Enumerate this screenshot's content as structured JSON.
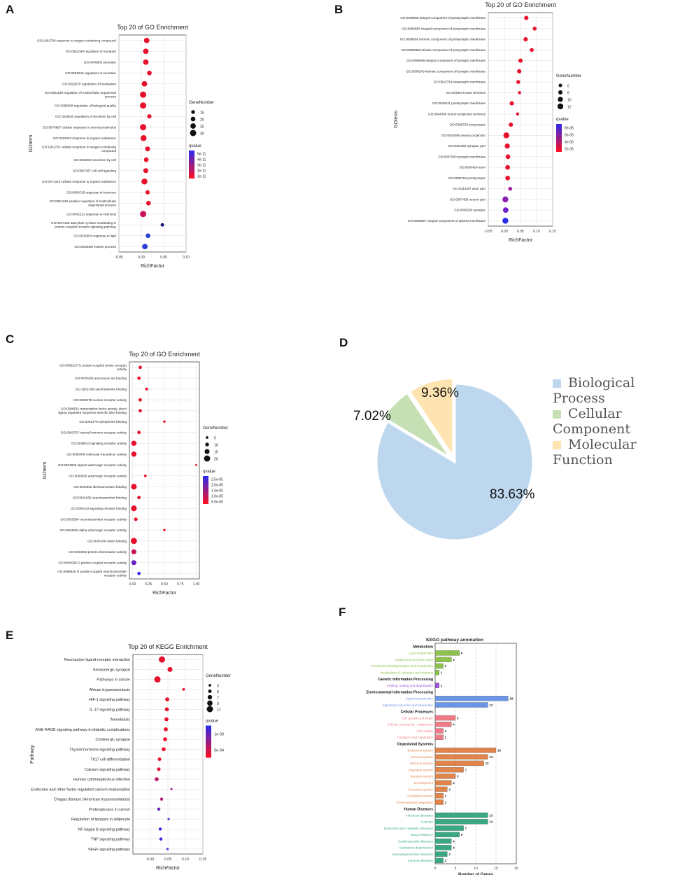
{
  "panels": {
    "a": "A",
    "b": "B",
    "c": "C",
    "d": "D",
    "e": "E",
    "f": "F"
  },
  "chart_data": [
    {
      "id": "A",
      "type": "scatter",
      "title": "Top 20 of GO Enrichment",
      "xlabel": "RichFactor",
      "ylabel": "GOterm",
      "xlim": [
        -0.05,
        0.1
      ],
      "xticks": [
        "-0.05",
        "0.00",
        "0.05",
        "0.10"
      ],
      "xtick_values": [
        -0.05,
        0.0,
        0.05,
        0.1
      ],
      "size_legend_title": "GeneNumber",
      "size_legend": [
        15,
        20,
        25,
        30
      ],
      "color_legend_title": "qvalue",
      "color_legend": [
        "5e-11",
        "4e-11",
        "3e-11",
        "2e-11",
        "1e-11"
      ],
      "terms": [
        "GO:1901700 response to oxygen-containing compound",
        "GO:0051049 regulation of transport",
        "GO:0046903 secretion",
        "GO:0051046 regulation of secretion",
        "GO:0032879 regulation of localization",
        "GO:0051239 regulation of multicellular organismal process",
        "GO:0065008 regulation of biological quality",
        "GO:1903530 regulation of secretion by cell",
        "GO:0070887 cellular response to chemical stimulus",
        "GO:0010033 response to organic substance",
        "GO:1901701 cellular response to oxygen-containing compound",
        "GO:0032940 secretion by cell",
        "GO:0007267 cell-cell signaling",
        "GO:0071310 cellular response to organic substance",
        "GO:0009725 response to hormone",
        "GO:0051240 positive regulation of multicellular organismal process",
        "GO:0042221 response to chemical",
        "GO:0007188 adenylate cyclase-modulating G protein-coupled receptor signaling pathway",
        "GO:0033993 response to lipid",
        "GO:0003008 system process"
      ],
      "richfactor": [
        0.012,
        0.01,
        0.01,
        0.018,
        0.007,
        0.004,
        0.004,
        0.018,
        0.004,
        0.005,
        0.014,
        0.011,
        0.01,
        0.007,
        0.014,
        0.016,
        0.004,
        0.047,
        0.015,
        0.008
      ],
      "genenumber": [
        25,
        25,
        25,
        20,
        25,
        30,
        30,
        18,
        30,
        28,
        22,
        20,
        22,
        28,
        18,
        20,
        30,
        13,
        20,
        25
      ],
      "qvalue_color": [
        "#e8112d",
        "#e8112d",
        "#e8112d",
        "#e8112d",
        "#e8112d",
        "#e8112d",
        "#e8112d",
        "#e8112d",
        "#e8112d",
        "#e8112d",
        "#e8112d",
        "#e8112d",
        "#e8112d",
        "#e8112d",
        "#e8112d",
        "#e8112d",
        "#c8115a",
        "#1b1b7a",
        "#2a3fd6",
        "#2a3fd6"
      ]
    },
    {
      "id": "B",
      "type": "scatter",
      "title": "Top 20 of GO Enrichment",
      "xlabel": "RichFactor",
      "ylabel": "GOterm",
      "xlim": [
        -0.05,
        0.15
      ],
      "xticks": [
        "-0.05",
        "0.00",
        "0.05",
        "0.10",
        "0.15"
      ],
      "xtick_values": [
        -0.05,
        0.0,
        0.05,
        0.1,
        0.15
      ],
      "size_legend_title": "GeneNumber",
      "size_legend": [
        6,
        8,
        10,
        12
      ],
      "color_legend_title": "qvalue",
      "color_legend": [
        "8e-05",
        "6e-05",
        "4e-05",
        "2e-05"
      ],
      "terms": [
        "GO:0099055 integral component of postsynaptic membrane",
        "GO:0099056 integral component of presynaptic membrane",
        "GO:0098936 intrinsic component of postsynaptic membrane",
        "GO:0098889 intrinsic component of presynaptic membrane",
        "GO:0099699 integral component of synaptic membrane",
        "GO:0099240 intrinsic component of synaptic membrane",
        "GO:0042734 presynaptic membrane",
        "GO:0043679 axon terminus",
        "GO:0045211 postsynaptic membrane",
        "GO:0044306 neuron projection terminus",
        "GO:0098793 presynapse",
        "GO:0043005 neuron projection",
        "GO:0044456 synapse part",
        "GO:0097060 synaptic membrane",
        "GO:0030424 axon",
        "GO:0098794 postsynapse",
        "GO:0033267 axon part",
        "GO:0097458 neuron part",
        "GO:0045202 synapse",
        "GO:0005887 integral component of plasma membrane"
      ],
      "richfactor": [
        0.068,
        0.094,
        0.066,
        0.085,
        0.05,
        0.046,
        0.043,
        0.047,
        0.023,
        0.041,
        0.02,
        0.006,
        0.009,
        0.011,
        0.01,
        0.01,
        0.018,
        0.003,
        0.004,
        0.003
      ],
      "genenumber": [
        8,
        7,
        8,
        7,
        8,
        8,
        7,
        5,
        8,
        5,
        8,
        12,
        10,
        9,
        9,
        9,
        7,
        12,
        11,
        12
      ],
      "qvalue_color": [
        "#e8112d",
        "#e8112d",
        "#e8112d",
        "#e8112d",
        "#e8112d",
        "#e8112d",
        "#e8112d",
        "#e8112d",
        "#e8112d",
        "#e8112d",
        "#e8112d",
        "#e8112d",
        "#e8112d",
        "#e8112d",
        "#e8112d",
        "#e8112d",
        "#a020a0",
        "#8a1fb0",
        "#7020c8",
        "#2a2aee"
      ]
    },
    {
      "id": "C",
      "type": "scatter",
      "title": "Top 20 of GO Enrichment",
      "xlabel": "RichFactor",
      "ylabel": "GOterm",
      "xlim": [
        -0.05,
        1.05
      ],
      "xticks": [
        "0.00",
        "0.25",
        "0.50",
        "0.75",
        "1.00"
      ],
      "xtick_values": [
        0.0,
        0.25,
        0.5,
        0.75,
        1.0
      ],
      "size_legend_title": "GeneNumber",
      "size_legend": [
        5,
        10,
        15,
        20
      ],
      "color_legend_title": "qvalue",
      "color_legend": [
        "2.5e-05",
        "2.0e-05",
        "1.5e-05",
        "1.0e-05",
        "5.0e-06"
      ],
      "terms": [
        "GO:0008227 G protein-coupled amine receptor activity",
        "GO:0070405 ammonium ion binding",
        "GO:1901338 catecholamine binding",
        "GO:0004879 nuclear receptor activity",
        "GO:0098531 transcription factor activity, direct ligand regulated sequence-specific DNA binding",
        "GO:0051379 epinephrine binding",
        "GO:0003707 steroid hormone receptor activity",
        "GO:0038023 signaling receptor activity",
        "GO:0060089 molecular transducer activity",
        "GO:0004938 alpha2-adrenergic receptor activity",
        "GO:0004935 adrenergic receptor activity",
        "GO:0042802 identical protein binding",
        "GO:0042165 neurotransmitter binding",
        "GO:0005102 signaling receptor binding",
        "GO:0030594 neurotransmitter receptor activity",
        "GO:0004936 alpha-adrenergic receptor activity",
        "GO:0043169 cation binding",
        "GO:0046983 protein dimerization activity",
        "GO:0004930 G protein-coupled receptor activity",
        "GO:0099528 G protein-coupled neurotransmitter receptor activity"
      ],
      "richfactor": [
        0.12,
        0.1,
        0.22,
        0.12,
        0.12,
        0.5,
        0.1,
        0.02,
        0.02,
        1.0,
        0.2,
        0.02,
        0.1,
        0.02,
        0.05,
        0.5,
        0.02,
        0.02,
        0.02,
        0.1
      ],
      "genenumber": [
        8,
        8,
        6,
        8,
        8,
        4,
        8,
        16,
        16,
        2,
        5,
        18,
        8,
        18,
        9,
        4,
        20,
        15,
        15,
        8
      ],
      "qvalue_color": [
        "#e8112d",
        "#e8112d",
        "#e8112d",
        "#e8112d",
        "#e8112d",
        "#e8112d",
        "#e8112d",
        "#e8112d",
        "#e8112d",
        "#e8112d",
        "#e8112d",
        "#e8112d",
        "#e8112d",
        "#e8112d",
        "#e8112d",
        "#e8112d",
        "#e8112d",
        "#c8115a",
        "#6a1fc0",
        "#3a2ae8"
      ]
    },
    {
      "id": "D",
      "type": "pie",
      "labels": [
        "Biological Process",
        "Cellular Component",
        "Molecular Function"
      ],
      "values": [
        83.63,
        7.02,
        9.36
      ],
      "value_labels": [
        "83.63%",
        "7.02%",
        "9.36%"
      ],
      "colors": [
        "#bdd7ee",
        "#c5e0b4",
        "#ffe3b0"
      ]
    },
    {
      "id": "E",
      "type": "scatter",
      "title": "Top 20 of KEGG Enrichment",
      "xlabel": "RichFactor",
      "ylabel": "Pathway",
      "xlim": [
        -0.05,
        0.15
      ],
      "xticks": [
        "0.00",
        "0.05",
        "0.10",
        "0.15"
      ],
      "xtick_values": [
        0.0,
        0.05,
        0.1,
        0.15
      ],
      "size_legend_title": "GeneNumber",
      "size_legend": [
        3,
        5,
        7,
        9,
        11
      ],
      "color_legend_title": "pvalue",
      "color_legend": [
        "1e-03",
        "5e-04"
      ],
      "terms": [
        "Neuroactive ligand-receptor interaction",
        "Serotonergic synapse",
        "Pathways in cancer",
        "African trypanosomiasis",
        "HIF-1 signaling pathway",
        "IL-17 signaling pathway",
        "Amoebiasis",
        "AGE-RAGE signaling pathway in diabetic complications",
        "Cholinergic synapse",
        "Thyroid hormone signaling pathway",
        "Th17 cell differentiation",
        "Calcium signaling pathway",
        "Human cytomegalovirus infection",
        "Endocrine and other factor-regulated calcium reabsorption",
        "Chagas disease (American trypanosomiasis)",
        "Proteoglycans in cancer",
        "Regulation of lipolysis in adipocyte",
        "NF-kappa B signaling pathway",
        "TNF signaling pathway",
        "VEGF signaling pathway"
      ],
      "richfactor": [
        0.033,
        0.056,
        0.02,
        0.095,
        0.048,
        0.047,
        0.046,
        0.044,
        0.042,
        0.038,
        0.026,
        0.024,
        0.018,
        0.06,
        0.032,
        0.024,
        0.052,
        0.028,
        0.03,
        0.049
      ],
      "genenumber": [
        11,
        8,
        11,
        3,
        6,
        6,
        6,
        6,
        6,
        6,
        5,
        5,
        6,
        2,
        4,
        4,
        2,
        4,
        4,
        2
      ],
      "qvalue_color": [
        "#e8112d",
        "#e8112d",
        "#e8112d",
        "#e8112d",
        "#e8112d",
        "#e8112d",
        "#e8112d",
        "#e8112d",
        "#e8112d",
        "#e8112d",
        "#e8112d",
        "#e8112d",
        "#c0186a",
        "#a01e90",
        "#b01a80",
        "#6a1fc0",
        "#5a20c8",
        "#4a24d8",
        "#3a28e4",
        "#3a28e4"
      ]
    },
    {
      "id": "F",
      "type": "bar",
      "title": "KEGG pathway annotation",
      "xlabel": "Number of Genes",
      "xlim": [
        0,
        20
      ],
      "xticks": [
        "0",
        "5",
        "10",
        "15",
        "20"
      ],
      "xtick_values": [
        0,
        5,
        10,
        15,
        20
      ],
      "groups": [
        {
          "name": "Metabolism",
          "color": "#8fc24c",
          "items": [
            {
              "label": "Lipid metabolism",
              "value": 6
            },
            {
              "label": "Global and overview maps",
              "value": 4
            },
            {
              "label": "Xenobiotics biodegradation and metabolism",
              "value": 2
            },
            {
              "label": "Metabolism of cofactors and vitamins",
              "value": 1
            }
          ]
        },
        {
          "name": "Genetic Information Processing",
          "color": "#9b52d6",
          "items": [
            {
              "label": "Folding, sorting and degradation",
              "value": 1
            }
          ]
        },
        {
          "name": "Environmental Information Processing",
          "color": "#6a95e6",
          "items": [
            {
              "label": "Signal transduction",
              "value": 18
            },
            {
              "label": "Signaling molecules and interaction",
              "value": 13
            }
          ]
        },
        {
          "name": "Cellular Processes",
          "color": "#ee7b86",
          "items": [
            {
              "label": "Cell growth and death",
              "value": 5
            },
            {
              "label": "Cellular community - eukaryotes",
              "value": 4
            },
            {
              "label": "Cell motility",
              "value": 2
            },
            {
              "label": "Transport and catabolism",
              "value": 2
            }
          ]
        },
        {
          "name": "Organismal Systems",
          "color": "#e0844c",
          "items": [
            {
              "label": "Endocrine system",
              "value": 15
            },
            {
              "label": "Immune system",
              "value": 13
            },
            {
              "label": "Nervous system",
              "value": 12
            },
            {
              "label": "Digestive system",
              "value": 7
            },
            {
              "label": "Sensory system",
              "value": 5
            },
            {
              "label": "Development",
              "value": 4
            },
            {
              "label": "Excretory system",
              "value": 3
            },
            {
              "label": "Circulatory system",
              "value": 2
            },
            {
              "label": "Environmental adaptation",
              "value": 2
            }
          ]
        },
        {
          "name": "Human Diseases",
          "color": "#3aa882",
          "items": [
            {
              "label": "Infectious diseases",
              "value": 13
            },
            {
              "label": "Cancers",
              "value": 13
            },
            {
              "label": "Endocrine and metabolic diseases",
              "value": 7
            },
            {
              "label": "Drug resistance",
              "value": 6
            },
            {
              "label": "Cardiovascular diseases",
              "value": 4
            },
            {
              "label": "Substance dependence",
              "value": 4
            },
            {
              "label": "Neurodegenerative diseases",
              "value": 3
            },
            {
              "label": "Immune diseases",
              "value": 2
            }
          ]
        }
      ]
    }
  ]
}
